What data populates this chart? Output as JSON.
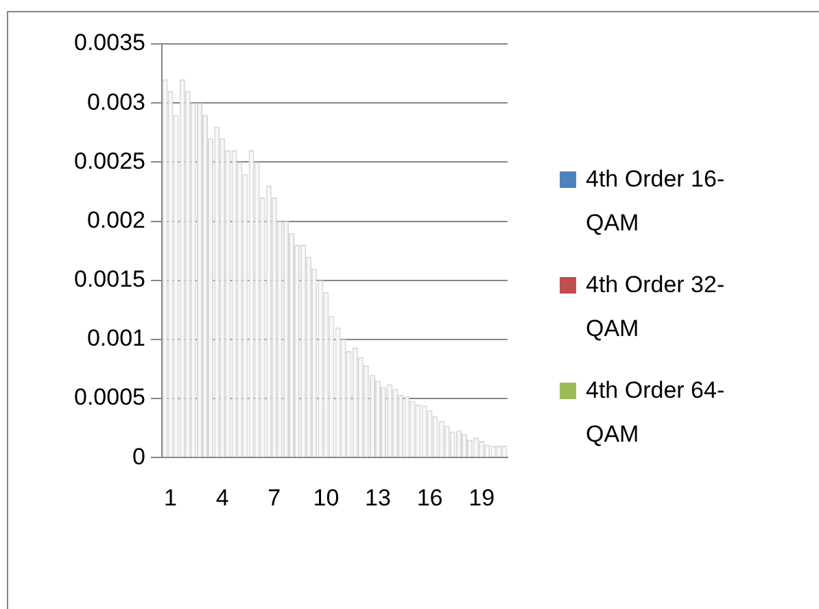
{
  "chart_data": {
    "type": "bar",
    "categories": [
      "1",
      null,
      null,
      "4",
      null,
      null,
      "7",
      null,
      null,
      "10",
      null,
      null,
      "13",
      null,
      null,
      "16",
      null,
      null,
      "19",
      null
    ],
    "series": [
      {
        "name": "4th Order 16-QAM",
        "color": "#4f81bd",
        "colors": [
          "#f8f8f8",
          "#f8f8f8",
          "#f8f8f8",
          "#f8f8f8",
          "#f8f8f8",
          "#f8f8f8",
          "#f8f8f8",
          "#f8f8f8",
          "#f8f8f8",
          "#f8f8f8",
          "#f8f8f8",
          "#f8f8f8",
          "#f8f8f8",
          "#f8f8f8",
          "#f8f8f8",
          "#f8f8f8",
          "#f8f8f8",
          "#f8f8f8",
          "#f8f8f8",
          "#f8f8f8"
        ],
        "values": [
          0.0032,
          0.0032,
          0.003,
          0.0028,
          0.0026,
          0.0026,
          0.0023,
          0.002,
          0.0018,
          0.0015,
          0.0011,
          0.00093,
          0.0007,
          0.00062,
          0.00052,
          0.00044,
          0.00031,
          0.00023,
          0.00017,
          0.0001
        ]
      },
      {
        "name": "4th Order 32-QAM",
        "color": "#c0504d",
        "colors": [
          "#f8f8f8",
          "#f8f8f8",
          "#f8f8f8",
          "#f8f8f8",
          "#f8f8f8",
          "#f8f8f8",
          "#f8f8f8",
          "#f8f8f8",
          "#f8f8f8",
          "#f8f8f8",
          "#f8f8f8",
          "#f8f8f8",
          "#f8f8f8",
          "#f8f8f8",
          "#f8f8f8",
          "#f8f8f8",
          "#f8f8f8",
          "#f8f8f8",
          "#f8f8f8",
          "#f8f8f8"
        ],
        "values": [
          0.0031,
          0.0031,
          0.0029,
          0.0027,
          0.0025,
          0.0025,
          0.0022,
          0.0019,
          0.0017,
          0.0014,
          0.001,
          0.00085,
          0.00065,
          0.00058,
          0.00048,
          0.0004,
          0.00027,
          0.0002,
          0.00014,
          0.0001
        ]
      },
      {
        "name": "4th Order 64-QAM",
        "color": "#9bbb59",
        "colors": [
          "#f8f8f8",
          "#f8f8f8",
          "#f8f8f8",
          "#f8f8f8",
          "#f8f8f8",
          "#f8f8f8",
          "#f8f8f8",
          "#f8f8f8",
          "#f8f8f8",
          "#f8f8f8",
          "#f8f8f8",
          "#f8f8f8",
          "#f8f8f8",
          "#f8f8f8",
          "#f8f8f8",
          "#f8f8f8",
          "#f8f8f8",
          "#f8f8f8",
          "#f8f8f8",
          "#f8f8f8"
        ],
        "values": [
          0.0029,
          0.003,
          0.0027,
          0.0026,
          0.0024,
          0.0022,
          0.002,
          0.0018,
          0.0016,
          0.0012,
          0.0009,
          0.00078,
          0.0006,
          0.00053,
          0.00045,
          0.00035,
          0.00022,
          0.00015,
          0.00011,
          0.0001
        ]
      }
    ],
    "ylim": [
      0,
      0.0035
    ],
    "yticks": [
      0,
      0.0005,
      0.001,
      0.0015,
      0.002,
      0.0025,
      0.003,
      0.0035
    ],
    "grid": "y",
    "legend": "right"
  }
}
